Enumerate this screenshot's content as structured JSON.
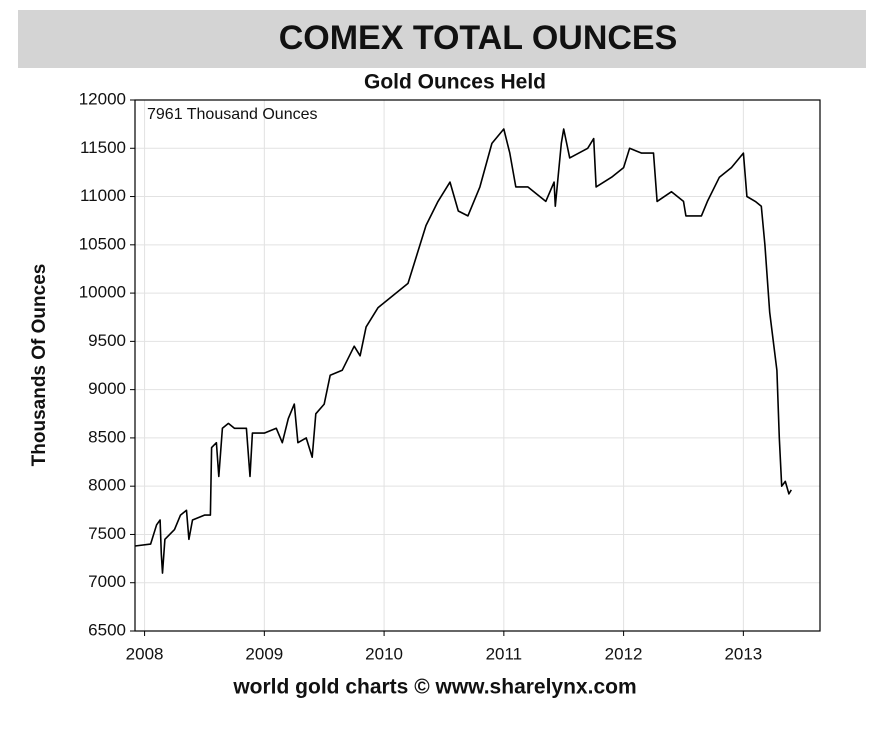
{
  "chart_data": {
    "type": "line",
    "title": "COMEX TOTAL OUNCES",
    "subtitle": "Gold Ounces Held",
    "ylabel": "Thousands Of Ounces",
    "annotation": "7961 Thousand Ounces",
    "footer": "world gold charts © www.sharelynx.com",
    "xlim": [
      2007.92,
      2013.64
    ],
    "xticks": [
      2008,
      2009,
      2010,
      2011,
      2012,
      2013
    ],
    "ylim": [
      6500,
      12000
    ],
    "yticks": [
      6500,
      7000,
      7500,
      8000,
      8500,
      9000,
      9500,
      10000,
      10500,
      11000,
      11500,
      12000
    ],
    "grid": true,
    "color": "#000000",
    "x": [
      2007.92,
      2008.05,
      2008.1,
      2008.13,
      2008.14,
      2008.15,
      2008.17,
      2008.25,
      2008.3,
      2008.35,
      2008.37,
      2008.4,
      2008.5,
      2008.55,
      2008.56,
      2008.6,
      2008.62,
      2008.65,
      2008.7,
      2008.75,
      2008.85,
      2008.88,
      2008.9,
      2009.0,
      2009.1,
      2009.15,
      2009.2,
      2009.25,
      2009.28,
      2009.35,
      2009.4,
      2009.43,
      2009.5,
      2009.55,
      2009.65,
      2009.75,
      2009.8,
      2009.85,
      2009.95,
      2010.0,
      2010.2,
      2010.25,
      2010.35,
      2010.45,
      2010.55,
      2010.62,
      2010.7,
      2010.8,
      2010.9,
      2011.0,
      2011.05,
      2011.1,
      2011.2,
      2011.35,
      2011.42,
      2011.43,
      2011.48,
      2011.5,
      2011.55,
      2011.7,
      2011.75,
      2011.77,
      2011.9,
      2012.0,
      2012.05,
      2012.15,
      2012.25,
      2012.28,
      2012.4,
      2012.5,
      2012.52,
      2012.65,
      2012.7,
      2012.8,
      2012.9,
      2013.0,
      2013.03,
      2013.1,
      2013.15,
      2013.18,
      2013.22,
      2013.28,
      2013.3,
      2013.32,
      2013.35,
      2013.38,
      2013.4
    ],
    "values": [
      7380,
      7400,
      7600,
      7650,
      7300,
      7100,
      7450,
      7550,
      7700,
      7750,
      7450,
      7650,
      7700,
      7700,
      8400,
      8450,
      8100,
      8600,
      8650,
      8600,
      8600,
      8100,
      8550,
      8550,
      8600,
      8450,
      8700,
      8850,
      8450,
      8500,
      8300,
      8750,
      8850,
      9150,
      9200,
      9450,
      9350,
      9650,
      9850,
      9900,
      10100,
      10300,
      10700,
      10950,
      11150,
      10850,
      10800,
      11100,
      11550,
      11700,
      11450,
      11100,
      11100,
      10950,
      11150,
      10900,
      11550,
      11700,
      11400,
      11500,
      11600,
      11100,
      11200,
      11300,
      11500,
      11450,
      11450,
      10950,
      11050,
      10950,
      10800,
      10800,
      10950,
      11200,
      11300,
      11450,
      11000,
      10950,
      10900,
      10500,
      9800,
      9200,
      8500,
      8000,
      8050,
      7920,
      7961
    ]
  }
}
